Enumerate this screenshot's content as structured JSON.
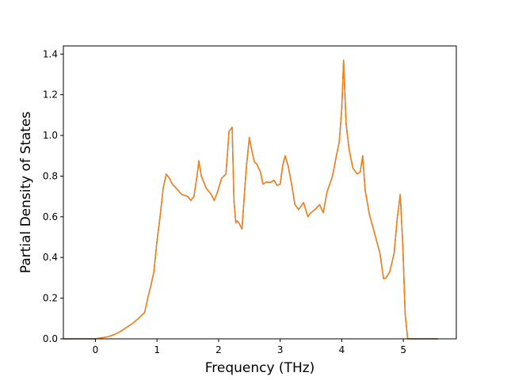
{
  "chart_data": {
    "type": "line",
    "title": "",
    "xlabel": "Frequency (THz)",
    "ylabel": "Partial Density of States",
    "xlim": [
      -0.52,
      5.86
    ],
    "ylim": [
      0,
      1.44
    ],
    "xticks": [
      0,
      1,
      2,
      3,
      4,
      5
    ],
    "xtick_labels": [
      "0",
      "1",
      "2",
      "3",
      "4",
      "5"
    ],
    "yticks": [
      0.0,
      0.2,
      0.4,
      0.6,
      0.8,
      1.0,
      1.2,
      1.4
    ],
    "ytick_labels": [
      "0.0",
      "0.2",
      "0.4",
      "0.6",
      "0.8",
      "1.0",
      "1.2",
      "1.4"
    ],
    "grid": false,
    "legend": "none",
    "series": [
      {
        "color": "#1f77b4",
        "x": [
          -0.52,
          -0.3,
          0,
          0.2,
          0.3,
          0.4,
          0.5,
          0.6,
          0.7,
          0.8,
          0.85,
          0.9,
          0.95,
          1.0,
          1.05,
          1.1,
          1.15,
          1.2,
          1.25,
          1.3,
          1.4,
          1.5,
          1.55,
          1.6,
          1.65,
          1.68,
          1.72,
          1.8,
          1.88,
          1.93,
          1.98,
          2.05,
          2.12,
          2.17,
          2.22,
          2.25,
          2.28,
          2.3,
          2.33,
          2.38,
          2.45,
          2.5,
          2.53,
          2.58,
          2.62,
          2.68,
          2.72,
          2.77,
          2.85,
          2.9,
          2.95,
          3.0,
          3.04,
          3.08,
          3.13,
          3.18,
          3.24,
          3.3,
          3.38,
          3.45,
          3.5,
          3.58,
          3.64,
          3.7,
          3.76,
          3.85,
          3.9,
          3.96,
          4.0,
          4.03,
          4.07,
          4.12,
          4.18,
          4.25,
          4.3,
          4.34,
          4.38,
          4.45,
          4.55,
          4.62,
          4.68,
          4.72,
          4.78,
          4.85,
          4.9,
          4.95,
          4.99,
          5.03,
          5.07,
          5.1,
          5.15,
          5.3,
          5.56
        ],
        "y": [
          0,
          0,
          0,
          0.01,
          0.02,
          0.035,
          0.055,
          0.075,
          0.1,
          0.13,
          0.2,
          0.26,
          0.33,
          0.48,
          0.6,
          0.74,
          0.81,
          0.79,
          0.76,
          0.745,
          0.71,
          0.7,
          0.68,
          0.7,
          0.8,
          0.875,
          0.8,
          0.74,
          0.71,
          0.68,
          0.72,
          0.79,
          0.81,
          1.02,
          1.04,
          0.68,
          0.57,
          0.58,
          0.57,
          0.54,
          0.84,
          0.99,
          0.94,
          0.87,
          0.86,
          0.82,
          0.76,
          0.77,
          0.77,
          0.78,
          0.755,
          0.76,
          0.85,
          0.9,
          0.85,
          0.77,
          0.66,
          0.635,
          0.67,
          0.6,
          0.62,
          0.64,
          0.66,
          0.62,
          0.72,
          0.8,
          0.88,
          0.97,
          1.13,
          1.37,
          1.06,
          0.93,
          0.84,
          0.81,
          0.82,
          0.9,
          0.73,
          0.61,
          0.5,
          0.42,
          0.295,
          0.3,
          0.33,
          0.42,
          0.59,
          0.71,
          0.47,
          0.12,
          0,
          0,
          0,
          0,
          0
        ]
      },
      {
        "color": "#ff7f0e",
        "x": [
          -0.52,
          -0.3,
          0,
          0.2,
          0.3,
          0.4,
          0.5,
          0.6,
          0.7,
          0.8,
          0.85,
          0.9,
          0.95,
          1.0,
          1.05,
          1.1,
          1.15,
          1.2,
          1.25,
          1.3,
          1.4,
          1.5,
          1.55,
          1.6,
          1.65,
          1.68,
          1.72,
          1.8,
          1.88,
          1.93,
          1.98,
          2.05,
          2.12,
          2.17,
          2.22,
          2.25,
          2.28,
          2.3,
          2.33,
          2.38,
          2.45,
          2.5,
          2.53,
          2.58,
          2.62,
          2.68,
          2.72,
          2.77,
          2.85,
          2.9,
          2.95,
          3.0,
          3.04,
          3.08,
          3.13,
          3.18,
          3.24,
          3.3,
          3.38,
          3.45,
          3.5,
          3.58,
          3.64,
          3.7,
          3.76,
          3.85,
          3.9,
          3.96,
          4.0,
          4.03,
          4.07,
          4.12,
          4.18,
          4.25,
          4.3,
          4.34,
          4.38,
          4.45,
          4.55,
          4.62,
          4.68,
          4.72,
          4.78,
          4.85,
          4.9,
          4.95,
          4.99,
          5.03,
          5.07,
          5.1,
          5.15,
          5.3,
          5.56
        ],
        "y": [
          0,
          0,
          0,
          0.01,
          0.02,
          0.035,
          0.055,
          0.075,
          0.1,
          0.13,
          0.2,
          0.26,
          0.33,
          0.48,
          0.6,
          0.74,
          0.81,
          0.79,
          0.76,
          0.745,
          0.71,
          0.7,
          0.68,
          0.7,
          0.8,
          0.875,
          0.8,
          0.74,
          0.71,
          0.68,
          0.72,
          0.79,
          0.81,
          1.02,
          1.04,
          0.68,
          0.57,
          0.58,
          0.57,
          0.54,
          0.84,
          0.99,
          0.94,
          0.87,
          0.86,
          0.82,
          0.76,
          0.77,
          0.77,
          0.78,
          0.755,
          0.76,
          0.85,
          0.9,
          0.85,
          0.77,
          0.66,
          0.635,
          0.67,
          0.6,
          0.62,
          0.64,
          0.66,
          0.62,
          0.72,
          0.8,
          0.88,
          0.97,
          1.13,
          1.37,
          1.06,
          0.93,
          0.84,
          0.81,
          0.82,
          0.9,
          0.73,
          0.61,
          0.5,
          0.42,
          0.295,
          0.3,
          0.33,
          0.42,
          0.59,
          0.71,
          0.47,
          0.12,
          0,
          0,
          0,
          0,
          0
        ]
      }
    ]
  }
}
